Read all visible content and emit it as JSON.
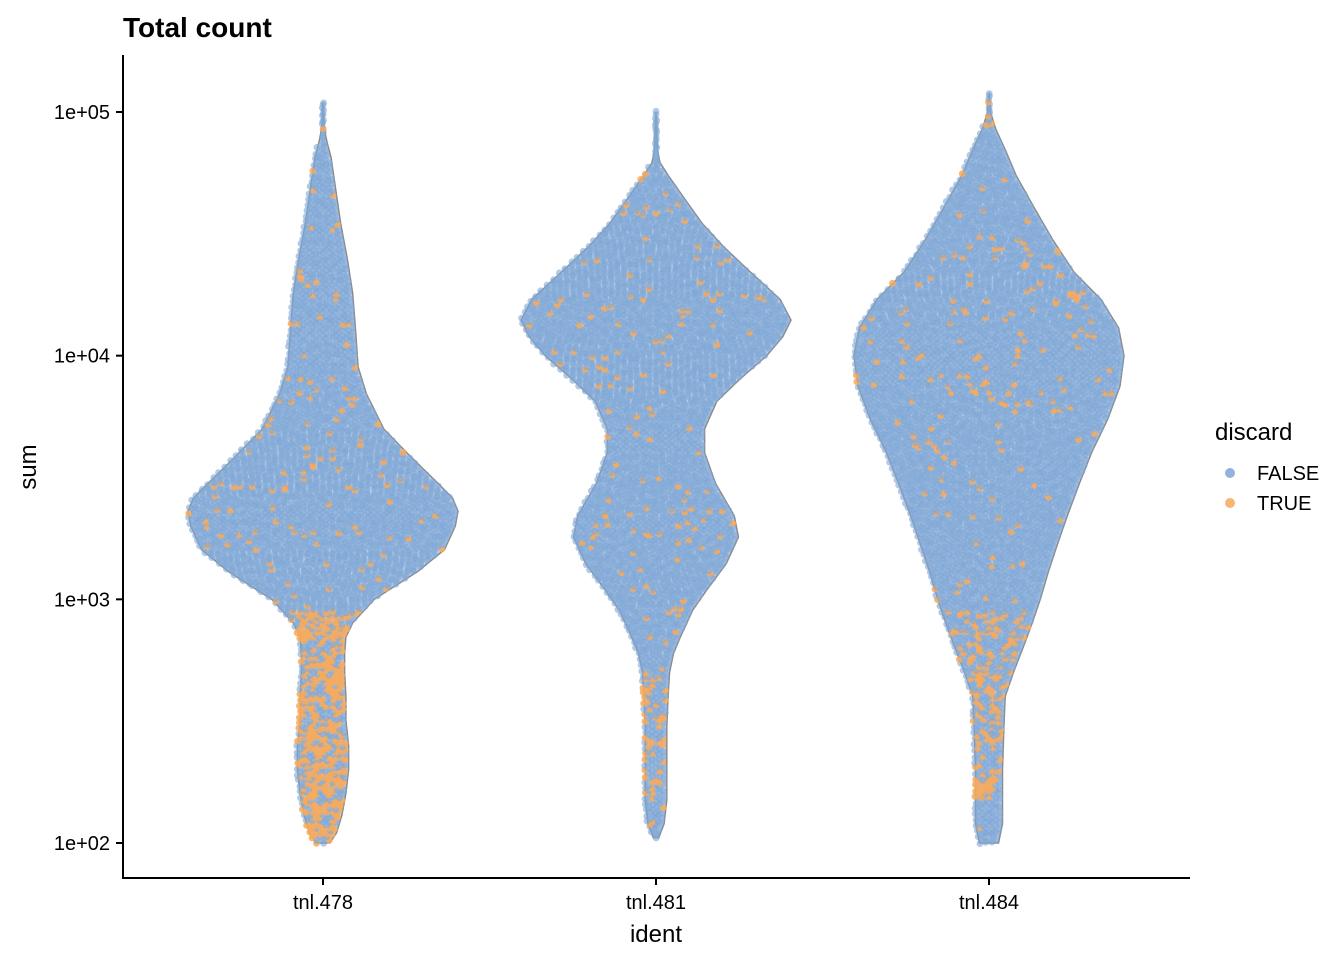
{
  "chart_data": {
    "type": "violin",
    "title": "Total count",
    "xlabel": "ident",
    "ylabel": "sum",
    "y_scale": "log10",
    "ylim": [
      75,
      180000
    ],
    "y_ticks": [
      100,
      1000,
      10000,
      100000
    ],
    "y_tick_labels": [
      "1e+02",
      "1e+03",
      "1e+04",
      "1e+05"
    ],
    "categories": [
      "tnl.478",
      "tnl.481",
      "tnl.484"
    ],
    "legend": {
      "title": "discard",
      "position": "right",
      "entries": [
        {
          "label": "FALSE",
          "color": "#7ea6d6"
        },
        {
          "label": "TRUE",
          "color": "#f6a95c"
        }
      ]
    },
    "violins": [
      {
        "category": "tnl.478",
        "min": 100,
        "max": 110000,
        "profile": [
          [
            100,
            0.05
          ],
          [
            110,
            0.1
          ],
          [
            130,
            0.14
          ],
          [
            160,
            0.17
          ],
          [
            200,
            0.19
          ],
          [
            250,
            0.19
          ],
          [
            320,
            0.17
          ],
          [
            400,
            0.17
          ],
          [
            500,
            0.16
          ],
          [
            600,
            0.16
          ],
          [
            700,
            0.17
          ],
          [
            800,
            0.22
          ],
          [
            1000,
            0.38
          ],
          [
            1300,
            0.7
          ],
          [
            1600,
            0.9
          ],
          [
            2000,
            0.98
          ],
          [
            2300,
            1.0
          ],
          [
            2600,
            0.96
          ],
          [
            3000,
            0.85
          ],
          [
            3800,
            0.66
          ],
          [
            5000,
            0.45
          ],
          [
            7000,
            0.32
          ],
          [
            9000,
            0.26
          ],
          [
            13000,
            0.24
          ],
          [
            18000,
            0.22
          ],
          [
            25000,
            0.18
          ],
          [
            35000,
            0.13
          ],
          [
            50000,
            0.09
          ],
          [
            65000,
            0.06
          ],
          [
            75000,
            0.03
          ],
          [
            85000,
            0.01
          ],
          [
            110000,
            0.0
          ]
        ],
        "true_fraction_low": [
          100,
          900
        ]
      },
      {
        "category": "tnl.481",
        "min": 105,
        "max": 100000,
        "profile": [
          [
            105,
            0.02
          ],
          [
            120,
            0.06
          ],
          [
            150,
            0.08
          ],
          [
            200,
            0.08
          ],
          [
            300,
            0.08
          ],
          [
            400,
            0.09
          ],
          [
            500,
            0.1
          ],
          [
            600,
            0.13
          ],
          [
            700,
            0.18
          ],
          [
            900,
            0.27
          ],
          [
            1100,
            0.38
          ],
          [
            1400,
            0.52
          ],
          [
            1800,
            0.61
          ],
          [
            2200,
            0.58
          ],
          [
            3000,
            0.44
          ],
          [
            4000,
            0.36
          ],
          [
            5000,
            0.36
          ],
          [
            6500,
            0.45
          ],
          [
            8000,
            0.62
          ],
          [
            10000,
            0.82
          ],
          [
            12000,
            0.94
          ],
          [
            14000,
            1.0
          ],
          [
            17000,
            0.92
          ],
          [
            22000,
            0.7
          ],
          [
            28000,
            0.5
          ],
          [
            35000,
            0.34
          ],
          [
            45000,
            0.2
          ],
          [
            55000,
            0.09
          ],
          [
            62000,
            0.03
          ],
          [
            70000,
            0.01
          ],
          [
            100000,
            0.0
          ]
        ],
        "true_fraction_low": [
          150,
          500
        ]
      },
      {
        "category": "tnl.484",
        "min": 100,
        "max": 120000,
        "profile": [
          [
            100,
            0.07
          ],
          [
            120,
            0.1
          ],
          [
            150,
            0.1
          ],
          [
            200,
            0.1
          ],
          [
            300,
            0.11
          ],
          [
            400,
            0.12
          ],
          [
            500,
            0.18
          ],
          [
            650,
            0.26
          ],
          [
            800,
            0.32
          ],
          [
            1000,
            0.38
          ],
          [
            1300,
            0.44
          ],
          [
            1700,
            0.51
          ],
          [
            2200,
            0.58
          ],
          [
            3000,
            0.67
          ],
          [
            4000,
            0.76
          ],
          [
            5500,
            0.88
          ],
          [
            7500,
            0.97
          ],
          [
            10000,
            1.0
          ],
          [
            13000,
            0.96
          ],
          [
            17000,
            0.83
          ],
          [
            22000,
            0.63
          ],
          [
            30000,
            0.47
          ],
          [
            40000,
            0.34
          ],
          [
            55000,
            0.2
          ],
          [
            70000,
            0.12
          ],
          [
            85000,
            0.05
          ],
          [
            100000,
            0.01
          ],
          [
            120000,
            0.0
          ]
        ],
        "true_fraction_low": [
          150,
          900
        ]
      }
    ]
  }
}
